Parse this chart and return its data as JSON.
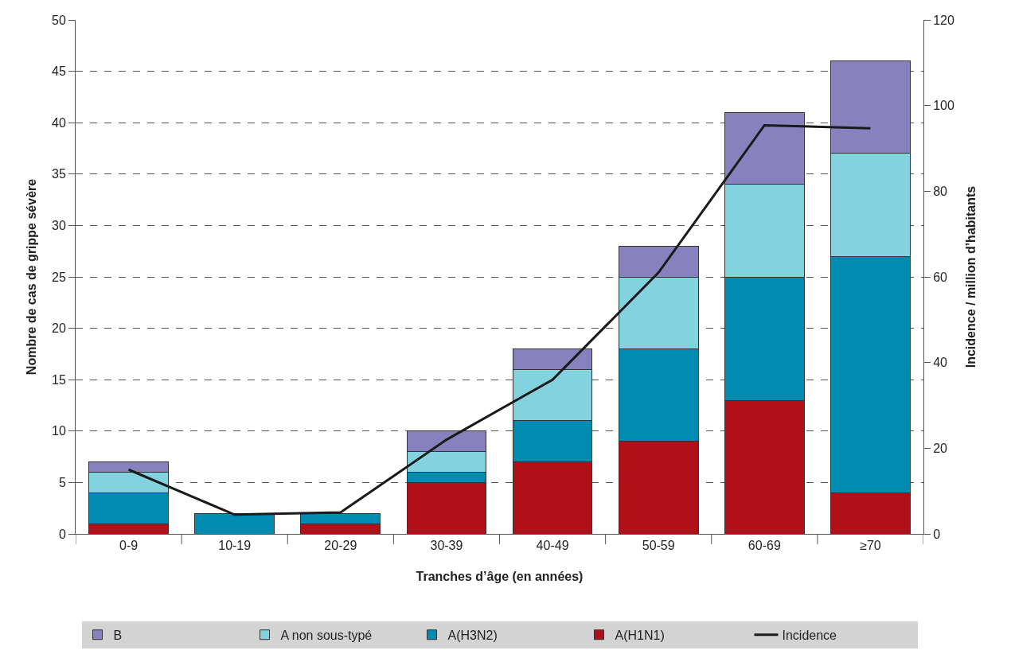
{
  "chart_data": {
    "type": "bar",
    "stacked": true,
    "xlabel": "Tranches d’âge (en années)",
    "ylabel": "Nombre de cas de grippe sévère",
    "y2label": "Incidence / million d’habitants",
    "categories": [
      "0-9",
      "10-19",
      "20-29",
      "30-39",
      "40-49",
      "50-59",
      "60-69",
      "≥70"
    ],
    "ylim": [
      0,
      50
    ],
    "yticks": [
      0,
      5,
      10,
      15,
      20,
      25,
      30,
      35,
      40,
      45,
      50
    ],
    "y2lim": [
      0,
      120
    ],
    "y2ticks": [
      0,
      20,
      40,
      60,
      80,
      100,
      120
    ],
    "grid": "y",
    "legend": "bottom",
    "series": [
      {
        "name": "A(H1N1)",
        "color": "#b01018",
        "values": [
          1,
          0,
          1,
          5,
          7,
          9,
          13,
          4
        ]
      },
      {
        "name": "A(H3N2)",
        "color": "#008bb0",
        "values": [
          3,
          2,
          1,
          1,
          4,
          9,
          12,
          23
        ]
      },
      {
        "name": "A non sous-typé",
        "color": "#84d2de",
        "values": [
          2,
          0,
          0,
          2,
          5,
          7,
          9,
          10
        ]
      },
      {
        "name": "B",
        "color": "#8782bd",
        "values": [
          1,
          0,
          0,
          2,
          2,
          3,
          7,
          9
        ]
      },
      {
        "name": "Incidence",
        "type": "line",
        "axis": "y2",
        "color": "#1a1a1a",
        "values": [
          15,
          4.5,
          5,
          22,
          36,
          61,
          95.4,
          94.7
        ]
      }
    ]
  }
}
